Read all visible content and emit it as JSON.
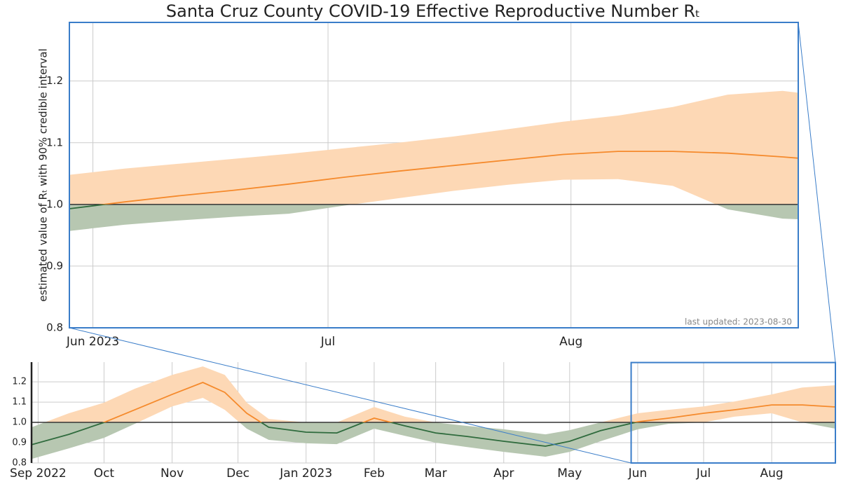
{
  "chart_data": [
    {
      "type": "line",
      "title": "Santa Cruz County COVID-19 Effective Reproductive Number Rₜ",
      "ylabel": "estimated value of Rₜ with 90% credible interval",
      "annotation": "last updated: 2023-08-30",
      "x": [
        "2023-05-29",
        "2023-06-05",
        "2023-06-12",
        "2023-06-19",
        "2023-06-26",
        "2023-07-03",
        "2023-07-10",
        "2023-07-17",
        "2023-07-24",
        "2023-07-31",
        "2023-08-07",
        "2023-08-14",
        "2023-08-21",
        "2023-08-28",
        "2023-08-30"
      ],
      "median": [
        0.993,
        1.004,
        1.014,
        1.023,
        1.033,
        1.044,
        1.054,
        1.063,
        1.072,
        1.081,
        1.086,
        1.086,
        1.083,
        1.077,
        1.075
      ],
      "upper": [
        1.048,
        1.058,
        1.066,
        1.074,
        1.082,
        1.091,
        1.1,
        1.11,
        1.122,
        1.134,
        1.144,
        1.158,
        1.178,
        1.184,
        1.181
      ],
      "lower": [
        0.957,
        0.967,
        0.974,
        0.98,
        0.985,
        0.998,
        1.01,
        1.022,
        1.032,
        1.04,
        1.041,
        1.03,
        0.992,
        0.977,
        0.976
      ],
      "xlim": [
        "2023-05-29",
        "2023-08-30"
      ],
      "xticks": [
        {
          "value": "2023-06-01",
          "label": "Jun 2023"
        },
        {
          "value": "2023-07-01",
          "label": "Jul"
        },
        {
          "value": "2023-08-01",
          "label": "Aug"
        }
      ],
      "ylim": [
        0.8,
        1.295
      ],
      "yticks": [
        0.8,
        0.9,
        {
          "value": 1,
          "label": "1.0"
        },
        1.1,
        1.2
      ],
      "hline": 1,
      "grid": true,
      "line_colors": {
        "above": "#f58a2c",
        "below": "#2f6b3d"
      },
      "band_colors": {
        "above": "#fdd8b5",
        "below": "#b7c7b1"
      }
    },
    {
      "type": "line",
      "x": [
        "2022-08-29",
        "2022-09-15",
        "2022-10-01",
        "2022-10-15",
        "2022-11-01",
        "2022-11-15",
        "2022-11-25",
        "2022-12-05",
        "2022-12-15",
        "2023-01-01",
        "2023-01-15",
        "2023-02-01",
        "2023-02-15",
        "2023-03-01",
        "2023-03-15",
        "2023-04-01",
        "2023-04-20",
        "2023-05-01",
        "2023-05-15",
        "2023-06-01",
        "2023-06-15",
        "2023-07-01",
        "2023-07-15",
        "2023-08-01",
        "2023-08-15",
        "2023-08-30"
      ],
      "median": [
        0.89,
        0.941,
        1.0,
        1.062,
        1.138,
        1.197,
        1.148,
        1.045,
        0.976,
        0.952,
        0.948,
        1.021,
        0.983,
        0.948,
        0.931,
        0.907,
        0.883,
        0.907,
        0.959,
        1.003,
        1.021,
        1.045,
        1.062,
        1.086,
        1.086,
        1.076
      ],
      "upper": [
        0.976,
        1.045,
        1.097,
        1.166,
        1.234,
        1.276,
        1.234,
        1.097,
        1.017,
        1.0,
        1.0,
        1.076,
        1.028,
        1.0,
        0.983,
        0.966,
        0.941,
        0.962,
        1.0,
        1.045,
        1.062,
        1.079,
        1.103,
        1.138,
        1.172,
        1.183
      ],
      "lower": [
        0.82,
        0.872,
        0.924,
        0.993,
        1.079,
        1.121,
        1.062,
        0.969,
        0.914,
        0.897,
        0.893,
        0.969,
        0.934,
        0.9,
        0.879,
        0.855,
        0.831,
        0.855,
        0.907,
        0.966,
        0.993,
        1.0,
        1.028,
        1.045,
        1.0,
        0.969
      ],
      "xlim": [
        "2022-08-29",
        "2023-08-30"
      ],
      "xticks": [
        {
          "value": "2022-09-01",
          "label": "Sep 2022"
        },
        {
          "value": "2022-10-01",
          "label": "Oct"
        },
        {
          "value": "2022-11-01",
          "label": "Nov"
        },
        {
          "value": "2022-12-01",
          "label": "Dec"
        },
        {
          "value": "2023-01-01",
          "label": "Jan 2023"
        },
        {
          "value": "2023-02-01",
          "label": "Feb"
        },
        {
          "value": "2023-03-01",
          "label": "Mar"
        },
        {
          "value": "2023-04-01",
          "label": "Apr"
        },
        {
          "value": "2023-05-01",
          "label": "May"
        },
        {
          "value": "2023-06-01",
          "label": "Jun"
        },
        {
          "value": "2023-07-01",
          "label": "Jul"
        },
        {
          "value": "2023-08-01",
          "label": "Aug"
        }
      ],
      "ylim": [
        0.8,
        1.297
      ],
      "yticks": [
        0.8,
        0.9,
        {
          "value": 1,
          "label": "1.0"
        },
        1.1,
        1.2
      ],
      "hline": 1,
      "grid": true,
      "line_colors": {
        "above": "#f58a2c",
        "below": "#2f6b3d"
      },
      "band_colors": {
        "above": "#fdd8b5",
        "below": "#b7c7b1"
      }
    }
  ]
}
